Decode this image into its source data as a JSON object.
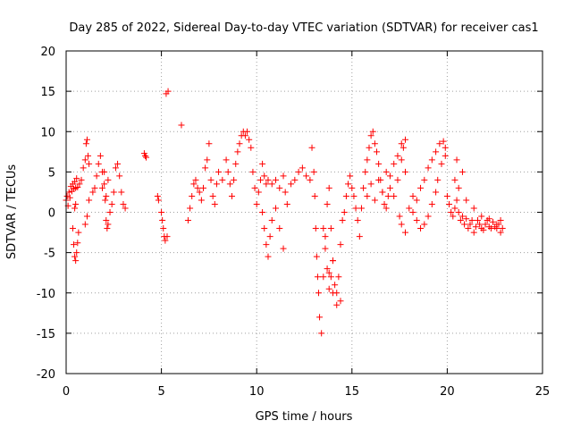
{
  "chart_data": {
    "type": "scatter",
    "title": "Day 285 of 2022, Sidereal Day-to-day VTEC variation (SDTVAR) for receiver cas1",
    "xlabel": "GPS time / hours",
    "ylabel": "SDTVAR / TECUs",
    "xlim": [
      0,
      25
    ],
    "ylim": [
      -20,
      20
    ],
    "xticks": [
      0,
      5,
      10,
      15,
      20,
      25
    ],
    "yticks": [
      -20,
      -15,
      -10,
      -5,
      0,
      5,
      10,
      15,
      20
    ],
    "xtick_labels": [
      "0",
      "5",
      "10",
      "15",
      "20",
      "25"
    ],
    "ytick_labels": [
      "-20",
      "-15",
      "-10",
      "-5",
      "0",
      "5",
      "10",
      "15",
      "20"
    ],
    "grid": true,
    "marker": "+",
    "color": "#ff0000",
    "series": [
      {
        "name": "SDTVAR",
        "x": [
          0.0,
          0.05,
          0.1,
          0.15,
          0.2,
          0.25,
          0.3,
          0.35,
          0.4,
          0.45,
          0.5,
          0.55,
          0.6,
          0.7,
          0.8,
          0.9,
          1.0,
          1.05,
          1.1,
          1.15,
          1.2,
          0.35,
          0.4,
          0.45,
          0.5,
          0.55,
          0.6,
          0.65,
          0.45,
          0.5,
          1.0,
          1.1,
          1.2,
          1.4,
          1.5,
          1.6,
          1.7,
          1.8,
          1.9,
          2.0,
          2.05,
          2.1,
          2.15,
          2.2,
          2.3,
          2.4,
          2.5,
          2.6,
          2.7,
          1.9,
          2.0,
          2.1,
          2.2,
          2.8,
          2.9,
          3.0,
          3.1,
          4.1,
          4.15,
          4.2,
          4.8,
          4.85,
          5.0,
          5.05,
          5.1,
          5.15,
          5.2,
          5.3,
          5.25,
          5.35,
          6.05,
          6.4,
          6.5,
          6.6,
          6.7,
          6.8,
          6.9,
          7.0,
          7.1,
          7.2,
          7.3,
          7.4,
          7.5,
          7.6,
          7.7,
          7.8,
          7.9,
          8.0,
          8.2,
          8.4,
          8.5,
          8.6,
          8.7,
          8.8,
          8.9,
          9.0,
          9.1,
          9.2,
          9.3,
          9.4,
          9.5,
          9.6,
          9.7,
          9.8,
          9.9,
          10.0,
          10.1,
          10.2,
          10.3,
          10.4,
          10.5,
          10.6,
          10.8,
          11.0,
          11.2,
          11.4,
          11.5,
          11.6,
          11.8,
          12.0,
          12.2,
          12.4,
          12.6,
          12.8,
          10.3,
          10.4,
          10.5,
          10.6,
          10.7,
          10.8,
          11.0,
          11.2,
          11.4,
          12.9,
          13.0,
          13.05,
          13.1,
          13.15,
          13.2,
          13.25,
          13.3,
          13.4,
          13.5,
          13.6,
          13.7,
          13.8,
          13.9,
          14.0,
          14.1,
          14.2,
          14.3,
          14.4,
          14.5,
          14.6,
          14.7,
          14.8,
          14.9,
          15.0,
          15.1,
          15.2,
          13.7,
          13.8,
          13.9,
          14.0,
          14.2,
          14.4,
          13.5,
          13.6,
          13.8,
          14.0,
          15.3,
          15.4,
          15.5,
          15.6,
          15.7,
          15.8,
          15.9,
          16.0,
          16.1,
          16.2,
          16.3,
          16.4,
          16.5,
          16.6,
          16.7,
          16.8,
          16.9,
          17.0,
          17.2,
          17.4,
          17.6,
          17.8,
          15.8,
          16.0,
          16.2,
          16.4,
          16.6,
          16.8,
          17.0,
          17.2,
          17.4,
          17.6,
          17.7,
          17.8,
          17.5,
          17.6,
          17.8,
          18.0,
          18.2,
          18.4,
          18.6,
          18.8,
          19.0,
          19.2,
          19.4,
          19.6,
          19.8,
          19.9,
          18.2,
          18.4,
          18.6,
          18.8,
          19.0,
          19.2,
          19.4,
          19.5,
          19.7,
          19.9,
          20.0,
          20.1,
          20.2,
          20.3,
          20.4,
          20.5,
          20.6,
          20.7,
          20.8,
          20.9,
          21.0,
          21.1,
          21.2,
          21.3,
          21.4,
          21.5,
          21.6,
          21.7,
          21.8,
          21.9,
          22.0,
          22.1,
          22.2,
          22.3,
          22.4,
          22.5,
          22.6,
          22.7,
          22.8,
          22.9,
          20.4,
          20.5,
          20.6,
          20.8,
          21.0,
          21.4,
          21.8,
          22.2,
          22.6,
          22.8
        ],
        "y": [
          1.5,
          2.0,
          0.8,
          2.5,
          1.8,
          3.2,
          2.6,
          3.5,
          2.9,
          3.8,
          3.0,
          4.2,
          3.1,
          3.5,
          4.0,
          5.5,
          6.5,
          8.5,
          9.0,
          7.0,
          6.0,
          -2.0,
          -4.0,
          -5.5,
          -6.0,
          -5.0,
          -3.8,
          -2.5,
          0.5,
          1.0,
          -1.5,
          -0.5,
          1.5,
          2.5,
          3.0,
          4.5,
          6.0,
          7.0,
          5.0,
          3.5,
          1.5,
          -1.0,
          -2.0,
          -1.5,
          0.0,
          1.0,
          2.5,
          5.5,
          6.0,
          3.0,
          5.0,
          2.0,
          4.0,
          4.5,
          2.5,
          1.0,
          0.5,
          7.3,
          7.0,
          6.8,
          2.0,
          1.5,
          0.0,
          -1.0,
          -2.0,
          -3.0,
          -3.5,
          -3.0,
          14.7,
          15.0,
          10.8,
          -1.0,
          0.5,
          2.0,
          3.5,
          4.0,
          3.0,
          2.5,
          1.5,
          3.0,
          5.5,
          6.5,
          8.5,
          4.0,
          2.0,
          1.0,
          3.5,
          5.0,
          4.0,
          6.5,
          5.0,
          3.5,
          2.0,
          4.0,
          6.0,
          7.5,
          8.5,
          9.5,
          10.0,
          9.5,
          10.0,
          9.0,
          8.0,
          5.0,
          3.0,
          1.0,
          2.5,
          4.0,
          6.0,
          4.5,
          3.5,
          4.0,
          3.5,
          4.0,
          3.0,
          4.5,
          2.5,
          1.0,
          3.5,
          4.0,
          5.0,
          5.5,
          4.5,
          4.0,
          0.0,
          -2.0,
          -4.0,
          -5.5,
          -3.0,
          -1.0,
          0.5,
          -2.0,
          -4.5,
          8.0,
          5.0,
          2.0,
          -2.0,
          -5.5,
          -8.0,
          -10.0,
          -13.0,
          -15.0,
          -8.0,
          -3.0,
          1.0,
          3.0,
          -2.0,
          -6.0,
          -9.0,
          -10.0,
          -8.0,
          -4.0,
          -1.0,
          0.0,
          2.0,
          3.5,
          4.5,
          3.0,
          2.0,
          0.5,
          -7.0,
          -9.5,
          -8.0,
          -6.0,
          -11.5,
          -11.0,
          -2.0,
          -4.5,
          -7.5,
          -10.0,
          -1.0,
          -3.0,
          0.5,
          3.0,
          5.0,
          6.5,
          8.0,
          9.5,
          10.0,
          8.5,
          7.5,
          6.0,
          4.0,
          2.5,
          1.0,
          0.5,
          2.0,
          4.5,
          6.0,
          7.0,
          8.5,
          9.0,
          2.0,
          3.5,
          1.5,
          4.0,
          2.5,
          5.0,
          3.0,
          2.0,
          4.0,
          6.5,
          8.0,
          5.0,
          -0.5,
          -1.5,
          -2.5,
          0.5,
          2.0,
          1.5,
          3.0,
          4.0,
          5.5,
          6.5,
          7.5,
          8.5,
          8.8,
          7.0,
          0.0,
          -1.0,
          -2.0,
          -1.5,
          -0.5,
          1.0,
          2.5,
          4.0,
          6.0,
          8.0,
          2.0,
          1.0,
          0.0,
          -0.5,
          0.5,
          1.5,
          0.0,
          -1.0,
          -0.5,
          -1.5,
          -0.8,
          -2.0,
          -1.5,
          -1.0,
          -2.5,
          -1.8,
          -1.0,
          -1.5,
          -2.0,
          -2.2,
          -1.5,
          -1.0,
          -1.8,
          -2.0,
          -1.2,
          -1.8,
          -2.0,
          -1.5,
          -1.0,
          -2.0,
          4.0,
          6.5,
          3.0,
          5.0,
          1.5,
          0.5,
          -0.5,
          -0.8,
          -1.5,
          -2.5
        ]
      }
    ]
  }
}
